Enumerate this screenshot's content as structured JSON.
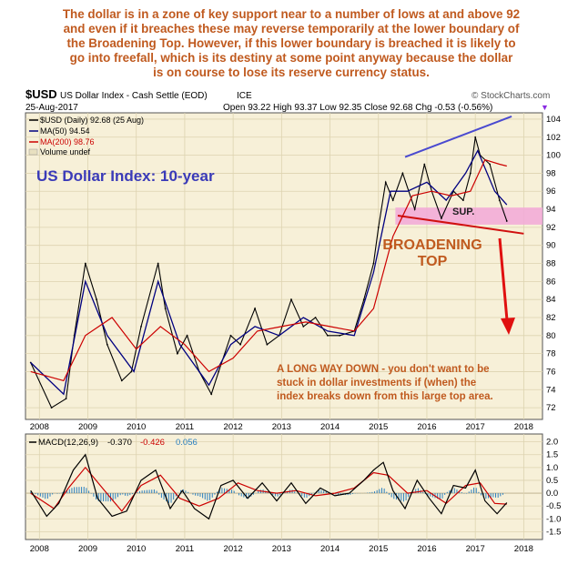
{
  "annotation_top": {
    "lines": [
      "The dollar is in a zone of key support near to a number of lows at and above 92",
      "and even if it breaches these may reverse temporarily at the lower boundary of",
      "the Broadening Top. However, if this lower boundary is breached it is likely to",
      "go into freefall, which is its destiny at some point anyway because the dollar",
      "is on course to lose its reserve currency status."
    ]
  },
  "header": {
    "symbol": "$USD",
    "name": "US Dollar Index - Cash Settle (EOD)",
    "exchange": "ICE",
    "brand": "© StockCharts.com",
    "date": "25-Aug-2017",
    "ohlc": "Open 93.22   High 93.37   Low 92.35   Close 92.68   Chg -0.53 (-0.56%)",
    "ohlc_marker": "▼"
  },
  "legend": {
    "price": "$USD (Daily) 92.68 (25 Aug)",
    "ma50": "MA(50) 94.54",
    "ma200": "MA(200) 98.76",
    "volume": "Volume undef"
  },
  "labels": {
    "chart_title": "US Dollar Index: 10-year",
    "support": "SUP.",
    "pattern_line1": "BROADENING",
    "pattern_line2": "TOP",
    "comment_line1": "A LONG WAY DOWN - you don't want to be",
    "comment_line2": "stuck in dollar investments if (when) the",
    "comment_line3": "index breaks down from this large top area."
  },
  "macd": {
    "label": "MACD(12,26,9)",
    "v1": "-0.370",
    "v2": "-0.426",
    "v3": "0.056"
  },
  "colors": {
    "background": "#f7f0d8",
    "price": "#000000",
    "ma50": "#000080",
    "ma200": "#cc0000",
    "title_blue": "#3a3ab8",
    "annotation": "#c05a1f",
    "arrow": "#e01010",
    "support_band": "#f2a8d8",
    "trend_top": "#4a4ad0",
    "trend_bottom": "#d01010"
  },
  "chart_data": [
    {
      "type": "line",
      "title": "US Dollar Index: 10-year",
      "x_ticks": [
        "2008",
        "2009",
        "2010",
        "2011",
        "2012",
        "2013",
        "2014",
        "2015",
        "2016",
        "2017",
        "2018"
      ],
      "y_ticks": [
        72,
        74,
        76,
        78,
        80,
        82,
        84,
        86,
        88,
        90,
        92,
        94,
        96,
        98,
        100,
        102,
        104
      ],
      "ylim": [
        71,
        104.5
      ],
      "y_axis_side": "right",
      "grid": true,
      "series": [
        {
          "name": "$USD",
          "x": [
            2007.82,
            2008.25,
            2008.55,
            2008.72,
            2008.95,
            2009.18,
            2009.4,
            2009.7,
            2009.9,
            2010.1,
            2010.45,
            2010.6,
            2010.85,
            2011.05,
            2011.3,
            2011.55,
            2011.7,
            2011.95,
            2012.15,
            2012.45,
            2012.7,
            2012.95,
            2013.2,
            2013.45,
            2013.7,
            2013.95,
            2014.2,
            2014.5,
            2014.7,
            2014.9,
            2015.0,
            2015.15,
            2015.3,
            2015.5,
            2015.75,
            2015.95,
            2016.1,
            2016.3,
            2016.55,
            2016.75,
            2016.9,
            2017.0,
            2017.1,
            2017.3,
            2017.5,
            2017.65
          ],
          "values": [
            77,
            72,
            73,
            80,
            88,
            84,
            79,
            75,
            76,
            81,
            88,
            83,
            78,
            80,
            76,
            73.5,
            76,
            80,
            79,
            83,
            79,
            80,
            84,
            81,
            82,
            80,
            80,
            80.5,
            84,
            88,
            92,
            97,
            95,
            98,
            94,
            99,
            96,
            93,
            96,
            95,
            98,
            102,
            100,
            99,
            95,
            92.7
          ]
        },
        {
          "name": "MA(50)",
          "x": [
            2007.82,
            2008.5,
            2008.95,
            2009.4,
            2009.95,
            2010.45,
            2010.9,
            2011.5,
            2011.95,
            2012.45,
            2012.95,
            2013.45,
            2013.95,
            2014.5,
            2014.9,
            2015.25,
            2015.6,
            2016.0,
            2016.4,
            2016.8,
            2017.05,
            2017.4,
            2017.65
          ],
          "values": [
            77,
            73.5,
            86,
            80,
            76,
            86,
            79,
            74.5,
            79,
            81,
            80,
            82,
            80.5,
            80,
            87,
            96,
            96,
            97,
            95,
            98,
            100.5,
            96,
            94.5
          ]
        },
        {
          "name": "MA(200)",
          "x": [
            2007.82,
            2008.5,
            2008.95,
            2009.5,
            2010.0,
            2010.5,
            2011.0,
            2011.5,
            2012.0,
            2012.5,
            2013.0,
            2013.5,
            2014.0,
            2014.5,
            2014.9,
            2015.3,
            2015.7,
            2016.1,
            2016.5,
            2016.9,
            2017.2,
            2017.5,
            2017.65
          ],
          "values": [
            76,
            75,
            80,
            82,
            78.5,
            81,
            79,
            76,
            77.5,
            80.5,
            81,
            81.5,
            81,
            80.5,
            83,
            91,
            95.5,
            96,
            95.5,
            96,
            99.5,
            99,
            98.8
          ]
        }
      ]
    },
    {
      "type": "line",
      "title": "MACD(12,26,9)",
      "x_ticks": [
        "2008",
        "2009",
        "2010",
        "2011",
        "2012",
        "2013",
        "2014",
        "2015",
        "2016",
        "2017",
        "2018"
      ],
      "y_ticks": [
        -1.5,
        -1.0,
        -0.5,
        0.0,
        0.5,
        1.0,
        1.5,
        2.0
      ],
      "ylim": [
        -1.7,
        2.2
      ],
      "series": [
        {
          "name": "MACD",
          "x": [
            2007.82,
            2008.15,
            2008.4,
            2008.7,
            2008.95,
            2009.2,
            2009.5,
            2009.8,
            2010.1,
            2010.4,
            2010.7,
            2010.95,
            2011.2,
            2011.5,
            2011.75,
            2012.0,
            2012.3,
            2012.6,
            2012.9,
            2013.2,
            2013.5,
            2013.8,
            2014.1,
            2014.4,
            2014.7,
            2014.9,
            2015.1,
            2015.3,
            2015.55,
            2015.8,
            2016.05,
            2016.3,
            2016.55,
            2016.8,
            2017.0,
            2017.2,
            2017.45,
            2017.65
          ],
          "values": [
            0.1,
            -0.9,
            -0.4,
            0.9,
            1.5,
            -0.2,
            -0.9,
            -0.7,
            0.5,
            0.9,
            -0.6,
            0.1,
            -0.6,
            -1.0,
            0.3,
            0.5,
            -0.2,
            0.4,
            -0.3,
            0.4,
            -0.4,
            0.2,
            -0.1,
            0.0,
            0.5,
            0.9,
            1.2,
            0.1,
            -0.6,
            0.5,
            -0.2,
            -0.8,
            0.3,
            0.2,
            0.9,
            -0.3,
            -0.8,
            -0.37
          ]
        },
        {
          "name": "Signal",
          "x": [
            2007.82,
            2008.3,
            2008.6,
            2008.95,
            2009.3,
            2009.7,
            2010.1,
            2010.5,
            2010.9,
            2011.3,
            2011.7,
            2012.1,
            2012.5,
            2012.9,
            2013.3,
            2013.7,
            2014.1,
            2014.5,
            2014.9,
            2015.2,
            2015.6,
            2016.0,
            2016.4,
            2016.8,
            2017.1,
            2017.4,
            2017.65
          ],
          "values": [
            0.0,
            -0.6,
            0.2,
            1.0,
            0.2,
            -0.7,
            0.3,
            0.7,
            -0.2,
            -0.5,
            -0.2,
            0.4,
            0.1,
            0.0,
            0.1,
            -0.1,
            0.0,
            0.2,
            0.8,
            0.7,
            0.0,
            0.1,
            -0.4,
            0.3,
            0.4,
            -0.4,
            -0.426
          ]
        }
      ]
    }
  ]
}
